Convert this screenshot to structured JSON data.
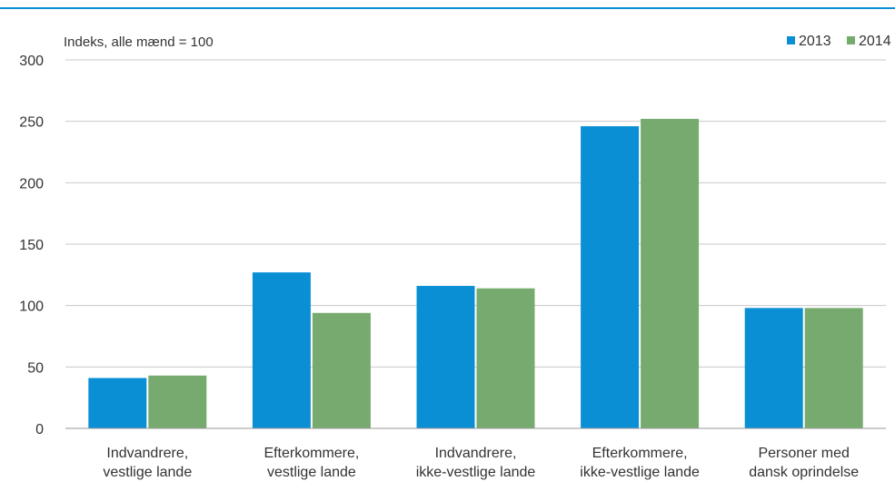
{
  "chart_data": {
    "type": "bar",
    "title": "",
    "annotation": "Indeks, alle mænd = 100",
    "xlabel": "",
    "ylabel": "",
    "ylim": [
      0,
      300
    ],
    "yticks": [
      0,
      50,
      100,
      150,
      200,
      250,
      300
    ],
    "grid": true,
    "legend_position": "top-right",
    "categories": [
      [
        "Indvandrere,",
        "vestlige lande"
      ],
      [
        "Efterkommere,",
        "vestlige lande"
      ],
      [
        "Indvandrere,",
        "ikke-vestlige lande"
      ],
      [
        "Efterkommere,",
        "ikke-vestlige lande"
      ],
      [
        "Personer med",
        "dansk oprindelse"
      ]
    ],
    "series": [
      {
        "name": "2013",
        "color": "#0a8fd5",
        "values": [
          41,
          127,
          116,
          246,
          98
        ]
      },
      {
        "name": "2014",
        "color": "#77aa6e",
        "values": [
          43,
          94,
          114,
          252,
          98
        ]
      }
    ]
  },
  "colors": {
    "top_rule": "#0a8fd5",
    "grid": "#c8c8c8",
    "axis": "#999999"
  }
}
